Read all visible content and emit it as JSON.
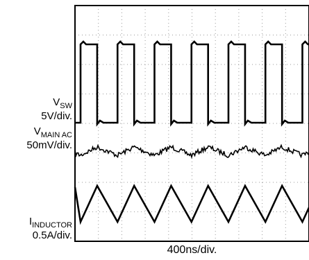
{
  "chart_data": {
    "type": "line",
    "title": "",
    "xlabel": "400ns/div.",
    "grid": true,
    "x_divisions": 10,
    "y_divisions": 8,
    "colors": {
      "trace": "#000000",
      "grid": "#9a9a9a",
      "frame": "#000000",
      "background": "#ffffff"
    },
    "channels": [
      {
        "name_main": "V",
        "name_sub": "SW",
        "scale": "5V/div.",
        "waveform": "square",
        "period_div": 1.58,
        "high_fraction": 0.45
      },
      {
        "name_main": "V",
        "name_sub": "MAIN AC",
        "scale": "50mV/div.",
        "waveform": "ripple",
        "period_div": 1.58
      },
      {
        "name_main": "I",
        "name_sub": "INDUCTOR",
        "scale": "0.5A/div.",
        "waveform": "triangle",
        "period_div": 1.58,
        "rise_fraction": 0.45
      }
    ]
  }
}
